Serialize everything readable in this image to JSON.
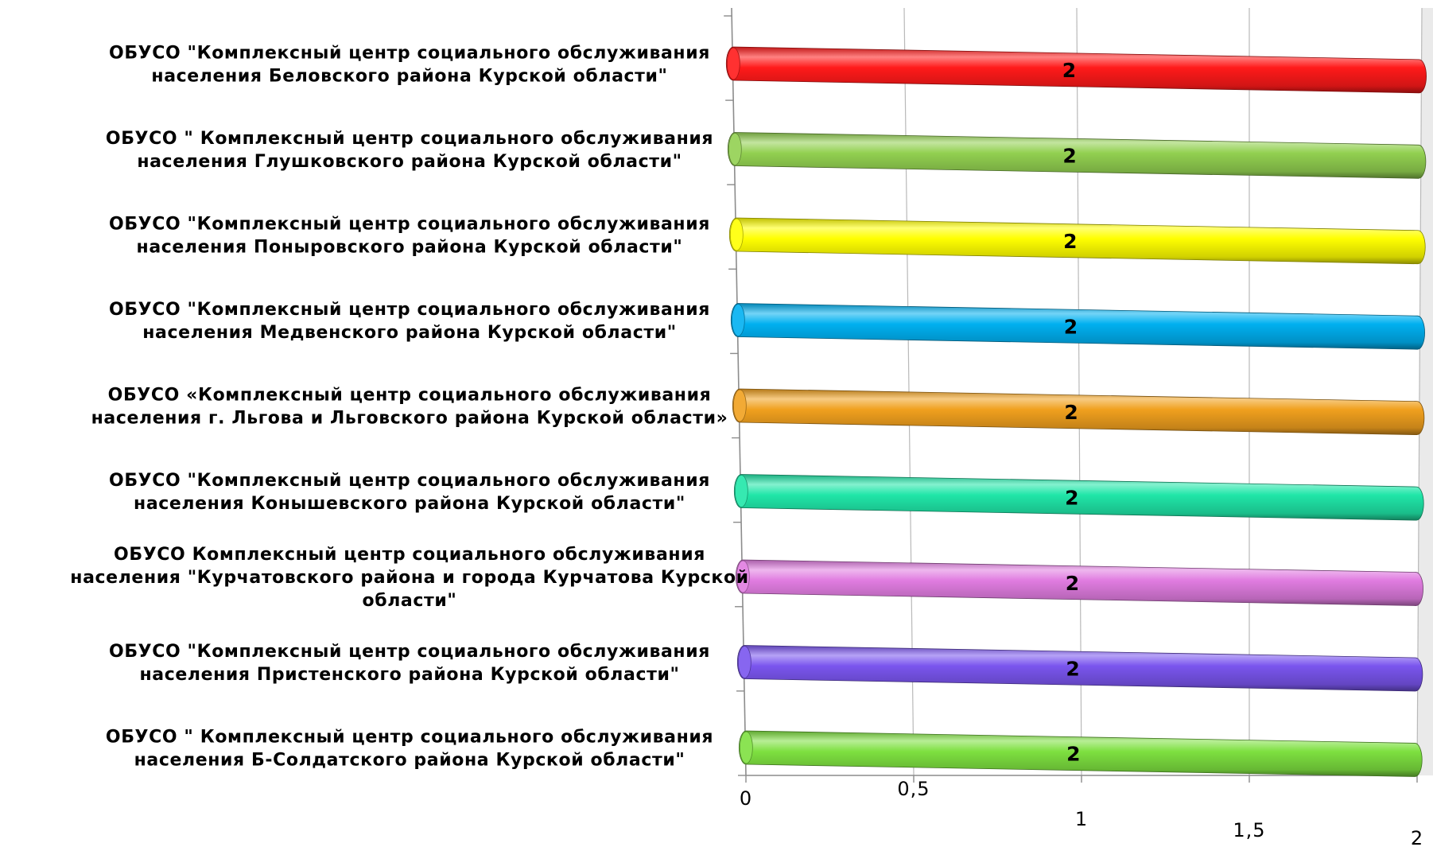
{
  "chart_data": {
    "type": "bar",
    "orientation": "horizontal",
    "style": "3d-cylinder",
    "categories": [
      [
        "ОБУСО \"Комплексный центр социального обслуживания",
        "населения  Беловского района  Курской области\""
      ],
      [
        "ОБУСО \" Комплексный  центр социального обслуживания",
        "населения  Глушковского района  Курской области\""
      ],
      [
        "ОБУСО \"Комплексный центр социального обслуживания",
        "населения  Поныровского  района  Курской области\""
      ],
      [
        "ОБУСО \"Комплексный центр социального обслуживания",
        "населения  Медвенского района  Курской области\""
      ],
      [
        "ОБУСО «Комплексный центр социального обслуживания",
        "населения г. Льгова и Льговского района  Курской области»"
      ],
      [
        "ОБУСО \"Комплексный центр социального обслуживания",
        "населения  Конышевского  района  Курской области\""
      ],
      [
        "ОБУСО Комплексный центр социального обслуживания",
        "населения  \"Курчатовского  района  и города Курчатова  Курской",
        "области\""
      ],
      [
        "ОБУСО \"Комплексный центр социального обслуживания",
        "населения  Пристенского района  Курской области\""
      ],
      [
        "ОБУСО \" Комплексный  центр социального обслуживания",
        "населения  Б-Солдатского района  Курской области\""
      ]
    ],
    "values": [
      2,
      2,
      2,
      2,
      2,
      2,
      2,
      2,
      2
    ],
    "data_labels": [
      "2",
      "2",
      "2",
      "2",
      "2",
      "2",
      "2",
      "2",
      "2"
    ],
    "colors": [
      "#ff1a1a",
      "#92d050",
      "#ffff00",
      "#00b0f0",
      "#f0a01e",
      "#20e6a8",
      "#e07ce0",
      "#7a55ee",
      "#7ee040"
    ],
    "xlim": [
      0,
      2
    ],
    "x_ticks": [
      0,
      0.5,
      1,
      1.5,
      2
    ],
    "x_tick_labels": [
      "0",
      "0,5",
      "1",
      "1,5",
      "2"
    ],
    "grid": true,
    "legend": false,
    "title": "",
    "xlabel": "",
    "ylabel": ""
  }
}
